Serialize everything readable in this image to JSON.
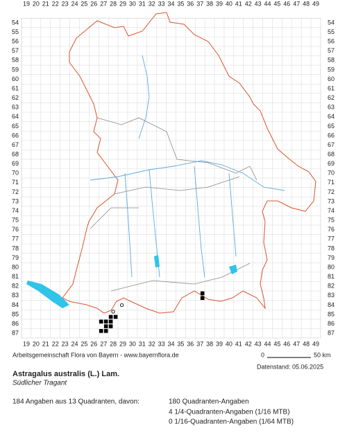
{
  "map": {
    "columns": [
      19,
      20,
      21,
      22,
      23,
      24,
      25,
      26,
      27,
      28,
      29,
      30,
      31,
      32,
      33,
      34,
      35,
      36,
      37,
      38,
      39,
      40,
      41,
      42,
      43,
      44,
      45,
      46,
      47,
      48,
      49
    ],
    "rows": [
      54,
      55,
      56,
      57,
      58,
      59,
      60,
      61,
      62,
      63,
      64,
      65,
      66,
      67,
      68,
      69,
      70,
      71,
      72,
      73,
      74,
      75,
      76,
      77,
      78,
      79,
      80,
      81,
      82,
      83,
      84,
      85,
      86,
      87
    ],
    "squares": [
      [
        37.25,
        82.75
      ],
      [
        37.25,
        83.25
      ],
      [
        27.75,
        85.25
      ],
      [
        28.25,
        85.25
      ],
      [
        26.75,
        85.75
      ],
      [
        27.25,
        85.75
      ],
      [
        27.75,
        85.75
      ],
      [
        27.25,
        86.25
      ],
      [
        27.75,
        86.25
      ],
      [
        26.75,
        86.75
      ],
      [
        27.25,
        86.75
      ]
    ],
    "circles": [
      [
        28.9,
        84.0
      ],
      [
        28.0,
        84.7
      ]
    ],
    "square_color": "#000000",
    "scale_start": "0",
    "scale_end": "50 km"
  },
  "footer": {
    "credit": "Arbeitsgemeinschaft Flora von Bayern - www.bayernflora.de",
    "date": "Datenstand: 05.06.2025",
    "title": "Astragalus australis (L.) Lam.",
    "subtitle": "Südlicher Tragant",
    "summary": "184 Angaben aus 13 Quadranten, davon:",
    "counts": [
      "180 Quadranten-Angaben",
      "4 1/4-Quadranten-Angaben (1/16 MTB)",
      "0 1/16-Quadranten-Angaben (1/64 MTB)"
    ]
  }
}
